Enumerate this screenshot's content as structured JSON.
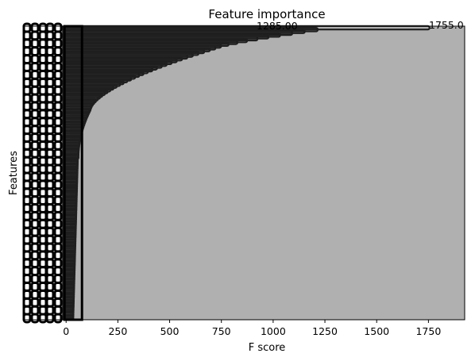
{
  "chart_data": {
    "type": "bar",
    "orientation": "horizontal",
    "title": "Feature importance",
    "xlabel": "F score",
    "ylabel": "Features",
    "xlim": [
      -208,
      1925
    ],
    "xticks": [
      0,
      250,
      500,
      750,
      1000,
      1250,
      1500,
      1750
    ],
    "xtick_labels": [
      "0",
      "250",
      "500",
      "750",
      "1000",
      "1250",
      "1500",
      "1750"
    ],
    "max_value": 1755,
    "max_value_label": "1755.0",
    "top_values": [
      1755
    ],
    "secondary_value_label_fragments": [
      "1285.00"
    ],
    "bar_color": "#1f1f1f",
    "background_color": "#b0b0b0",
    "grid": false,
    "legend": "none",
    "feature_count": 2000,
    "curve_note": "features sorted ascending; dense overlapping bars form a saturating curve reaching 1755 at the top"
  }
}
